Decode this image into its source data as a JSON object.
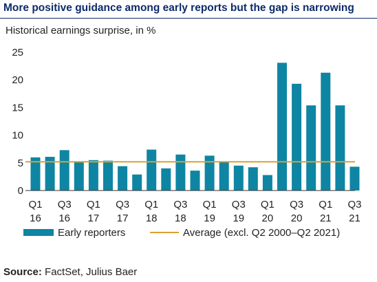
{
  "title": "More positive guidance among early reports but the gap is narrowing",
  "source_label": "Source:",
  "source_text": "FactSet, Julius Baer",
  "colors": {
    "bar": "#0e85a3",
    "average": "#d9a233",
    "title": "#0d2a6b"
  },
  "chart_data": {
    "type": "bar",
    "title": "More positive guidance among early reports but the gap is narrowing",
    "ylabel": "Historical earnings surprise, in %",
    "xlabel": "",
    "ylim": [
      0,
      25
    ],
    "yticks": [
      0,
      5,
      10,
      15,
      20,
      25
    ],
    "grid": false,
    "legend": "bottom",
    "categories": [
      "Q1 16",
      "Q2 16",
      "Q3 16",
      "Q4 16",
      "Q1 17",
      "Q2 17",
      "Q3 17",
      "Q4 17",
      "Q1 18",
      "Q2 18",
      "Q3 18",
      "Q4 18",
      "Q1 19",
      "Q2 19",
      "Q3 19",
      "Q4 19",
      "Q1 20",
      "Q2 20",
      "Q3 20",
      "Q4 20",
      "Q1 21",
      "Q2 21",
      "Q3 21"
    ],
    "xtick_labels": [
      {
        "index": 0,
        "line1": "Q1",
        "line2": "16"
      },
      {
        "index": 2,
        "line1": "Q3",
        "line2": "16"
      },
      {
        "index": 4,
        "line1": "Q1",
        "line2": "17"
      },
      {
        "index": 6,
        "line1": "Q3",
        "line2": "17"
      },
      {
        "index": 8,
        "line1": "Q1",
        "line2": "18"
      },
      {
        "index": 10,
        "line1": "Q3",
        "line2": "18"
      },
      {
        "index": 12,
        "line1": "Q1",
        "line2": "19"
      },
      {
        "index": 14,
        "line1": "Q3",
        "line2": "19"
      },
      {
        "index": 16,
        "line1": "Q1",
        "line2": "20"
      },
      {
        "index": 18,
        "line1": "Q3",
        "line2": "20"
      },
      {
        "index": 20,
        "line1": "Q1",
        "line2": "21"
      },
      {
        "index": 22,
        "line1": "Q3",
        "line2": "21"
      }
    ],
    "series": [
      {
        "name": "Early reporters",
        "type": "bar",
        "values": [
          6.0,
          6.1,
          7.3,
          5.1,
          5.5,
          5.4,
          4.4,
          2.9,
          7.4,
          4.0,
          6.5,
          3.6,
          6.3,
          5.1,
          4.5,
          4.2,
          2.8,
          23.1,
          19.3,
          15.4,
          21.3,
          15.4,
          4.3
        ]
      },
      {
        "name": "Average (excl. Q2 2000–Q2 2021)",
        "type": "line",
        "value": 5.2
      }
    ]
  }
}
